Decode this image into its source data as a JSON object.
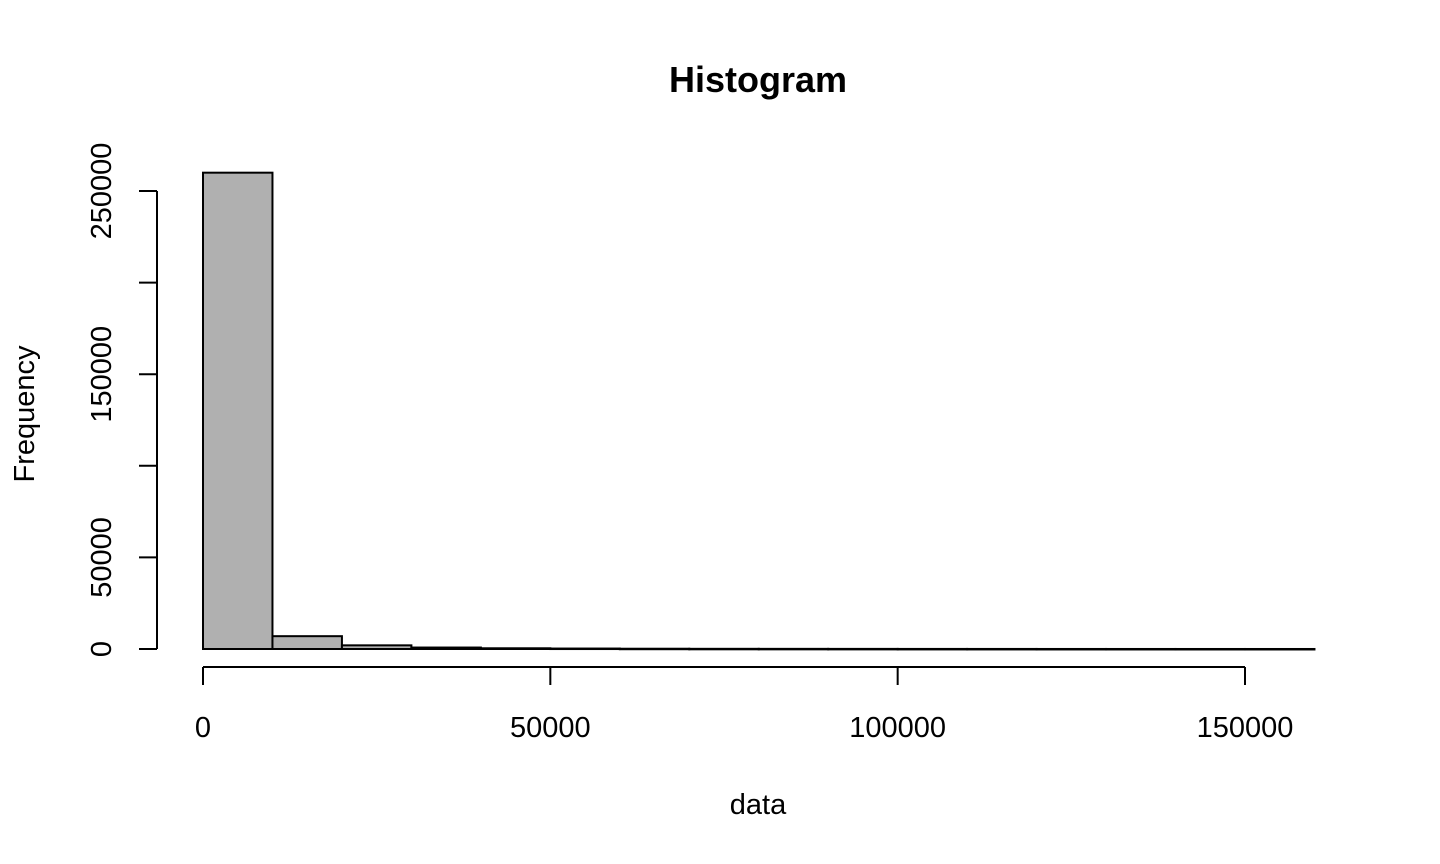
{
  "chart_data": {
    "type": "bar",
    "title": "Histogram",
    "xlabel": "data",
    "ylabel": "Frequency",
    "bin_edges": [
      0,
      10000,
      20000,
      30000,
      40000,
      50000,
      60000,
      70000,
      80000,
      90000,
      100000,
      110000,
      120000,
      130000,
      140000,
      150000,
      160000
    ],
    "values": [
      260000,
      7000,
      2000,
      800,
      400,
      250,
      150,
      100,
      80,
      60,
      40,
      30,
      20,
      15,
      10,
      8
    ],
    "xlim": [
      0,
      160000
    ],
    "ylim": [
      0,
      260000
    ],
    "x_ticks": [
      0,
      50000,
      100000,
      150000
    ],
    "x_tick_labels": [
      "0",
      "50000",
      "100000",
      "150000"
    ],
    "y_ticks": [
      0,
      50000,
      100000,
      150000,
      200000,
      250000
    ],
    "y_tick_labels": [
      "0",
      "50000",
      "",
      "150000",
      "",
      "250000"
    ],
    "grid": false,
    "colors": {
      "bar_fill": "#b0b0b0",
      "bar_edge": "#000000"
    }
  }
}
